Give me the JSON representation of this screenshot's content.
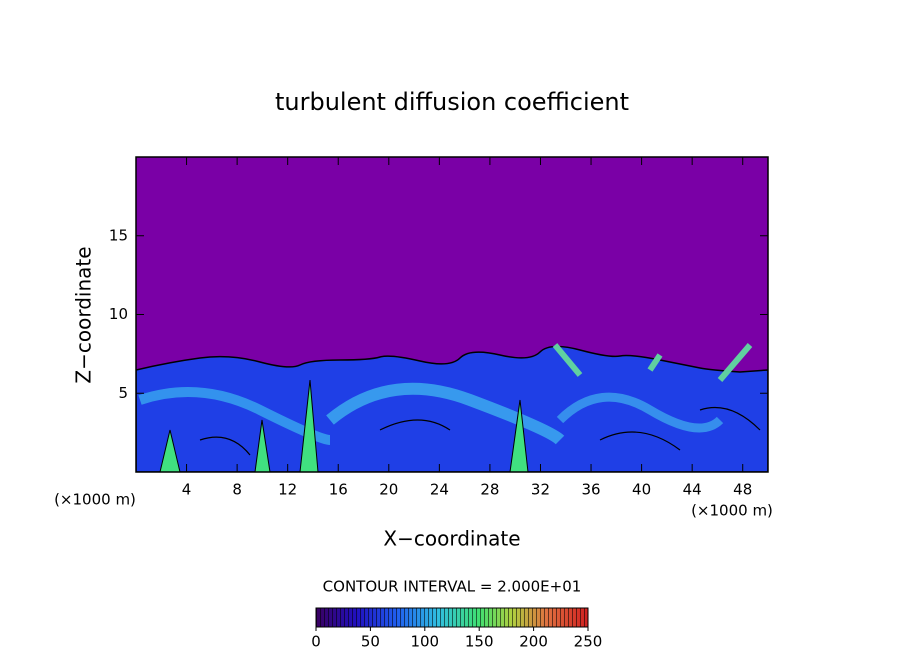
{
  "chart_data": {
    "type": "contour",
    "title": "turbulent diffusion coefficient",
    "xlabel": "X−coordinate",
    "ylabel": "Z−coordinate",
    "x_unit": "(×1000 m)",
    "y_unit": "(×1000 m)",
    "xlim": [
      0,
      50
    ],
    "xticks": [
      4,
      8,
      12,
      16,
      20,
      24,
      28,
      32,
      36,
      40,
      44,
      48
    ],
    "ylim": [
      0,
      20
    ],
    "yticks": [
      5,
      10,
      15
    ],
    "contour_label": "CONTOUR INTERVAL = 2.000E+01",
    "colorbar": {
      "range": [
        0,
        250
      ],
      "ticks": [
        0,
        50,
        100,
        150,
        200,
        250
      ]
    }
  }
}
